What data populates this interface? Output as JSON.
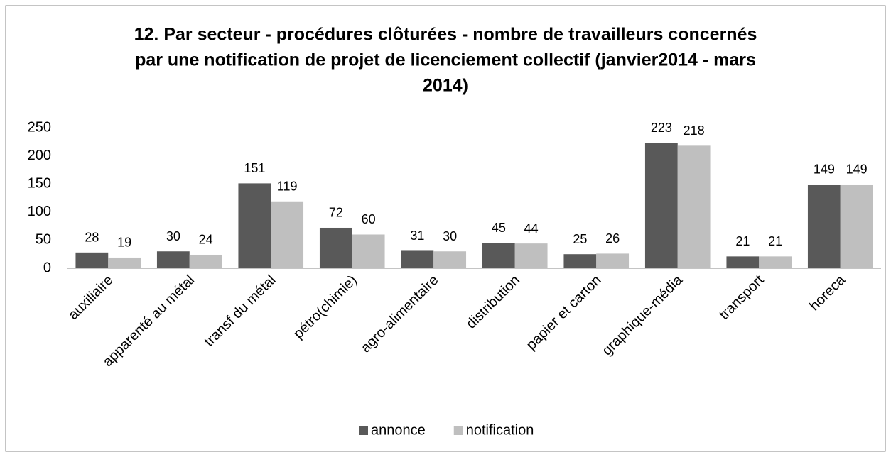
{
  "chart_data": {
    "type": "bar",
    "title": [
      "12. Par secteur - procédures clôturées  - nombre de travailleurs concernés",
      "par une notification de projet de licenciement collectif (janvier2014 - mars",
      "2014)"
    ],
    "categories": [
      "auxiliaire",
      "apparenté au métal",
      "transf du métal",
      "pétro(chimie)",
      "agro-alimentaire",
      "distribution",
      "papier et carton",
      "graphique-média",
      "transport",
      "horeca"
    ],
    "series": [
      {
        "name": "annonce",
        "color": "#595959",
        "values": [
          28,
          30,
          151,
          72,
          31,
          45,
          25,
          223,
          21,
          149
        ]
      },
      {
        "name": "notification",
        "color": "#bfbfbf",
        "values": [
          19,
          24,
          119,
          60,
          30,
          44,
          26,
          218,
          21,
          149
        ]
      }
    ],
    "ylim": [
      0,
      250
    ],
    "yticks": [
      0,
      50,
      100,
      150,
      200,
      250
    ],
    "grid": false,
    "legend": "bottom"
  }
}
